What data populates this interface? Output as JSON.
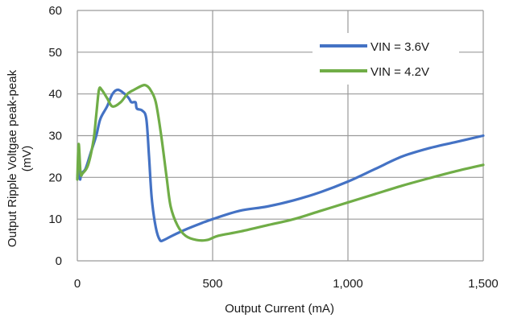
{
  "chart_data": {
    "type": "line",
    "xlabel": "Output Current (mA)",
    "ylabel_lines": [
      "Output Ripple Voltgae peak-peak",
      "(mV)"
    ],
    "xlim": [
      0,
      1500
    ],
    "ylim": [
      0,
      60
    ],
    "x_ticks": [
      0,
      500,
      1000,
      1500
    ],
    "x_tick_labels": [
      "0",
      "500",
      "1,000",
      "1,500"
    ],
    "y_ticks": [
      0,
      10,
      20,
      30,
      40,
      50,
      60
    ],
    "y_tick_labels": [
      "0",
      "10",
      "20",
      "30",
      "40",
      "50",
      "60"
    ],
    "grid": true,
    "legend_position": "top-right",
    "series": [
      {
        "name": "VIN = 3.6V",
        "color": "#4472c4",
        "points": [
          [
            0,
            20
          ],
          [
            5,
            22
          ],
          [
            10,
            19.5
          ],
          [
            15,
            21
          ],
          [
            30,
            22
          ],
          [
            50,
            26
          ],
          [
            70,
            30
          ],
          [
            85,
            34
          ],
          [
            110,
            37
          ],
          [
            130,
            40
          ],
          [
            150,
            41
          ],
          [
            175,
            40
          ],
          [
            190,
            39
          ],
          [
            200,
            38
          ],
          [
            215,
            38
          ],
          [
            220,
            36.5
          ],
          [
            240,
            36
          ],
          [
            255,
            34
          ],
          [
            265,
            25
          ],
          [
            275,
            15
          ],
          [
            290,
            8
          ],
          [
            305,
            5
          ],
          [
            320,
            5
          ],
          [
            350,
            6
          ],
          [
            400,
            7.5
          ],
          [
            450,
            8.8
          ],
          [
            500,
            10
          ],
          [
            600,
            12
          ],
          [
            700,
            13
          ],
          [
            800,
            14.5
          ],
          [
            900,
            16.5
          ],
          [
            1000,
            19
          ],
          [
            1100,
            22
          ],
          [
            1200,
            25
          ],
          [
            1300,
            27
          ],
          [
            1400,
            28.5
          ],
          [
            1500,
            30
          ]
        ]
      },
      {
        "name": "VIN = 4.2V",
        "color": "#70ad47",
        "points": [
          [
            0,
            19.5
          ],
          [
            5,
            28
          ],
          [
            12,
            21
          ],
          [
            20,
            21
          ],
          [
            40,
            23
          ],
          [
            60,
            29
          ],
          [
            70,
            35
          ],
          [
            80,
            41
          ],
          [
            90,
            41
          ],
          [
            110,
            39
          ],
          [
            130,
            37
          ],
          [
            160,
            38
          ],
          [
            185,
            40
          ],
          [
            210,
            41
          ],
          [
            240,
            42
          ],
          [
            255,
            42
          ],
          [
            270,
            41
          ],
          [
            290,
            38
          ],
          [
            310,
            30
          ],
          [
            330,
            20
          ],
          [
            345,
            13
          ],
          [
            370,
            8.5
          ],
          [
            400,
            6
          ],
          [
            440,
            5
          ],
          [
            480,
            5
          ],
          [
            520,
            6
          ],
          [
            600,
            7
          ],
          [
            700,
            8.5
          ],
          [
            800,
            10
          ],
          [
            900,
            12
          ],
          [
            1000,
            14
          ],
          [
            1100,
            16
          ],
          [
            1200,
            18
          ],
          [
            1300,
            19.8
          ],
          [
            1400,
            21.5
          ],
          [
            1500,
            23
          ]
        ]
      }
    ]
  }
}
